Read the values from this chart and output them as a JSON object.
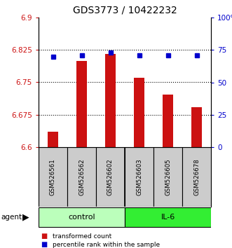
{
  "title": "GDS3773 / 10422232",
  "samples": [
    "GSM526561",
    "GSM526562",
    "GSM526602",
    "GSM526603",
    "GSM526605",
    "GSM526678"
  ],
  "bar_values": [
    6.635,
    6.8,
    6.815,
    6.76,
    6.722,
    6.693
  ],
  "percentile_values": [
    70,
    71,
    73,
    71,
    71,
    71
  ],
  "ylim_left": [
    6.6,
    6.9
  ],
  "ylim_right": [
    0,
    100
  ],
  "yticks_left": [
    6.6,
    6.675,
    6.75,
    6.825,
    6.9
  ],
  "yticks_right": [
    0,
    25,
    50,
    75,
    100
  ],
  "hlines": [
    6.825,
    6.75,
    6.675
  ],
  "bar_color": "#cc1111",
  "dot_color": "#0000cc",
  "groups": [
    {
      "label": "control",
      "indices": [
        0,
        1,
        2
      ],
      "color": "#bbffbb"
    },
    {
      "label": "IL-6",
      "indices": [
        3,
        4,
        5
      ],
      "color": "#33ee33"
    }
  ],
  "ybase": 6.6,
  "title_fontsize": 10,
  "tick_fontsize": 7.5,
  "label_color_left": "#cc1111",
  "label_color_right": "#0000cc",
  "sample_box_color": "#cccccc",
  "bar_width": 0.35
}
